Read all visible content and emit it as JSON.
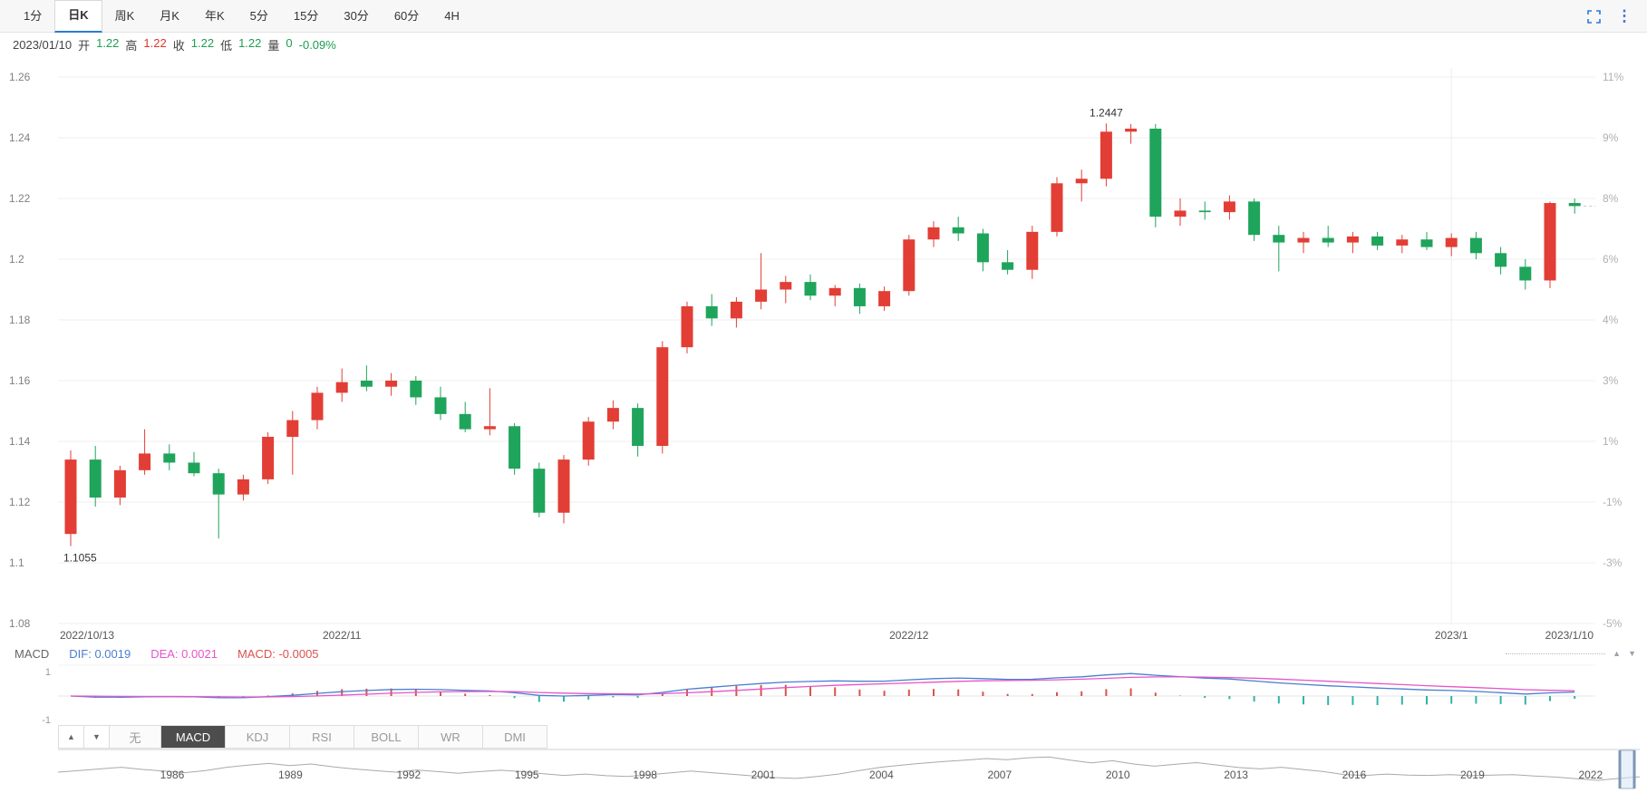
{
  "colors": {
    "up_red": "#e23e35",
    "down_green": "#1fa45b",
    "dif_blue": "#4a7fd1",
    "dea_magenta": "#e655c8",
    "hist_pos_red": "#d9544a",
    "hist_neg_teal": "#30b3a6",
    "accent_blue": "#2b7cd3"
  },
  "header": {
    "tabs": [
      {
        "label": "1分",
        "active": false
      },
      {
        "label": "日K",
        "active": true
      },
      {
        "label": "周K",
        "active": false
      },
      {
        "label": "月K",
        "active": false
      },
      {
        "label": "年K",
        "active": false
      },
      {
        "label": "5分",
        "active": false
      },
      {
        "label": "15分",
        "active": false
      },
      {
        "label": "30分",
        "active": false
      },
      {
        "label": "60分",
        "active": false
      },
      {
        "label": "4H",
        "active": false
      }
    ]
  },
  "info_bar": {
    "date": "2023/01/10",
    "fields": [
      {
        "label": "开",
        "value": "1.22",
        "color": "green"
      },
      {
        "label": "高",
        "value": "1.22",
        "color": "red"
      },
      {
        "label": "收",
        "value": "1.22",
        "color": "green"
      },
      {
        "label": "低",
        "value": "1.22",
        "color": "green"
      },
      {
        "label": "量",
        "value": "0",
        "color": "green"
      }
    ],
    "change": {
      "value": "-0.09%",
      "color": "green"
    }
  },
  "chart_data": [
    {
      "type": "candlestick",
      "name": "price-daily",
      "y_axis_left": [
        "1.26",
        "1.24",
        "1.22",
        "1.2",
        "1.18",
        "1.16",
        "1.14",
        "1.12",
        "1.1",
        "1.08"
      ],
      "y_axis_right": [
        "11%",
        "9%",
        "8%",
        "6%",
        "4%",
        "3%",
        "1%",
        "-1%",
        "-3%",
        "-5%"
      ],
      "ylim": [
        1.08,
        1.26
      ],
      "x_labels": [
        {
          "label": "2022/10/13",
          "index": 0,
          "align": "start"
        },
        {
          "label": "2022/11",
          "index": 11,
          "align": "middle"
        },
        {
          "label": "2022/12",
          "index": 34,
          "align": "middle"
        },
        {
          "label": "2023/1",
          "index": 56,
          "align": "middle"
        },
        {
          "label": "2023/1/10",
          "index": 61,
          "align": "end"
        }
      ],
      "grid_vline_index": 56,
      "annotations": [
        {
          "text": "1.1055",
          "index": 0,
          "price": 1.1055,
          "placement": "below"
        },
        {
          "text": "1.2447",
          "index": 42,
          "price": 1.2447,
          "placement": "above"
        }
      ],
      "candles_ohlc": [
        [
          1.1095,
          1.137,
          1.1055,
          1.134
        ],
        [
          1.134,
          1.1385,
          1.1185,
          1.1215
        ],
        [
          1.1215,
          1.132,
          1.119,
          1.1305
        ],
        [
          1.1305,
          1.144,
          1.129,
          1.136
        ],
        [
          1.136,
          1.139,
          1.1305,
          1.133
        ],
        [
          1.133,
          1.1365,
          1.1285,
          1.1295
        ],
        [
          1.1295,
          1.131,
          1.108,
          1.1225
        ],
        [
          1.1225,
          1.129,
          1.1205,
          1.1275
        ],
        [
          1.1275,
          1.143,
          1.126,
          1.1415
        ],
        [
          1.1415,
          1.15,
          1.129,
          1.147
        ],
        [
          1.147,
          1.158,
          1.144,
          1.156
        ],
        [
          1.156,
          1.164,
          1.153,
          1.1595
        ],
        [
          1.16,
          1.165,
          1.1565,
          1.158
        ],
        [
          1.158,
          1.1625,
          1.155,
          1.16
        ],
        [
          1.16,
          1.1615,
          1.152,
          1.1545
        ],
        [
          1.1545,
          1.158,
          1.147,
          1.149
        ],
        [
          1.149,
          1.153,
          1.143,
          1.144
        ],
        [
          1.144,
          1.1575,
          1.142,
          1.145
        ],
        [
          1.145,
          1.146,
          1.129,
          1.131
        ],
        [
          1.131,
          1.133,
          1.115,
          1.1165
        ],
        [
          1.1165,
          1.1355,
          1.113,
          1.134
        ],
        [
          1.134,
          1.148,
          1.132,
          1.1465
        ],
        [
          1.1465,
          1.1535,
          1.144,
          1.151
        ],
        [
          1.151,
          1.1525,
          1.135,
          1.1385
        ],
        [
          1.1385,
          1.173,
          1.136,
          1.171
        ],
        [
          1.171,
          1.186,
          1.169,
          1.1845
        ],
        [
          1.1845,
          1.1885,
          1.178,
          1.1805
        ],
        [
          1.1805,
          1.1875,
          1.1775,
          1.186
        ],
        [
          1.186,
          1.202,
          1.1835,
          1.19
        ],
        [
          1.19,
          1.1945,
          1.1855,
          1.1925
        ],
        [
          1.1925,
          1.195,
          1.1865,
          1.188
        ],
        [
          1.188,
          1.1915,
          1.1845,
          1.1905
        ],
        [
          1.1905,
          1.192,
          1.182,
          1.1845
        ],
        [
          1.1845,
          1.191,
          1.183,
          1.1895
        ],
        [
          1.1895,
          1.208,
          1.188,
          1.2065
        ],
        [
          1.2065,
          1.2125,
          1.204,
          1.2105
        ],
        [
          1.2105,
          1.214,
          1.206,
          1.2085
        ],
        [
          1.2085,
          1.21,
          1.196,
          1.199
        ],
        [
          1.199,
          1.203,
          1.195,
          1.1965
        ],
        [
          1.1965,
          1.211,
          1.1935,
          1.209
        ],
        [
          1.209,
          1.227,
          1.2075,
          1.225
        ],
        [
          1.225,
          1.2295,
          1.219,
          1.2265
        ],
        [
          1.2265,
          1.2447,
          1.224,
          1.242
        ],
        [
          1.242,
          1.2445,
          1.238,
          1.243
        ],
        [
          1.243,
          1.2445,
          1.2105,
          1.214
        ],
        [
          1.214,
          1.22,
          1.211,
          1.216
        ],
        [
          1.216,
          1.219,
          1.213,
          1.2155
        ],
        [
          1.2155,
          1.221,
          1.213,
          1.219
        ],
        [
          1.219,
          1.22,
          1.206,
          1.208
        ],
        [
          1.208,
          1.211,
          1.196,
          1.2055
        ],
        [
          1.2055,
          1.209,
          1.202,
          1.207
        ],
        [
          1.207,
          1.211,
          1.204,
          1.2055
        ],
        [
          1.2055,
          1.209,
          1.202,
          1.2075
        ],
        [
          1.2075,
          1.209,
          1.203,
          1.2045
        ],
        [
          1.2045,
          1.208,
          1.202,
          1.2065
        ],
        [
          1.2065,
          1.209,
          1.203,
          1.204
        ],
        [
          1.204,
          1.2085,
          1.201,
          1.207
        ],
        [
          1.207,
          1.209,
          1.2,
          1.202
        ],
        [
          1.202,
          1.204,
          1.195,
          1.1975
        ],
        [
          1.1975,
          1.2,
          1.19,
          1.193
        ],
        [
          1.193,
          1.219,
          1.1905,
          1.2185
        ],
        [
          1.2185,
          1.22,
          1.215,
          1.2175
        ]
      ]
    },
    {
      "type": "macd",
      "name": "macd-panel",
      "label": "MACD",
      "dif": "DIF: 0.0019",
      "dea": "DEA: 0.0021",
      "macd": "MACD: -0.0005",
      "y_axis": [
        "1",
        "-1"
      ],
      "derived_from": "price-daily"
    },
    {
      "type": "line",
      "name": "history-navigator",
      "x_labels": [
        "1986",
        "1989",
        "1992",
        "1995",
        "1998",
        "2001",
        "2004",
        "2007",
        "2010",
        "2013",
        "2016",
        "2019",
        "2022"
      ],
      "values": [
        0.4,
        0.46,
        0.52,
        0.58,
        0.5,
        0.44,
        0.38,
        0.46,
        0.58,
        0.66,
        0.72,
        0.64,
        0.7,
        0.6,
        0.52,
        0.46,
        0.4,
        0.48,
        0.42,
        0.36,
        0.42,
        0.47,
        0.42,
        0.34,
        0.28,
        0.33,
        0.27,
        0.24,
        0.3,
        0.37,
        0.44,
        0.38,
        0.32,
        0.26,
        0.2,
        0.17,
        0.24,
        0.33,
        0.46,
        0.58,
        0.66,
        0.73,
        0.79,
        0.84,
        0.9,
        0.86,
        0.93,
        0.96,
        0.84,
        0.74,
        0.82,
        0.7,
        0.62,
        0.69,
        0.75,
        0.66,
        0.57,
        0.52,
        0.58,
        0.5,
        0.42,
        0.31,
        0.28,
        0.33,
        0.29,
        0.28,
        0.31,
        0.27,
        0.29,
        0.31,
        0.26,
        0.22,
        0.16,
        0.1,
        0.17,
        0.23
      ]
    }
  ],
  "indicator_bar": {
    "up_button": "▲",
    "down_button": "▼",
    "tabs": [
      {
        "label": "无",
        "active": false
      },
      {
        "label": "MACD",
        "active": true
      },
      {
        "label": "KDJ",
        "active": false
      },
      {
        "label": "RSI",
        "active": false
      },
      {
        "label": "BOLL",
        "active": false
      },
      {
        "label": "WR",
        "active": false
      },
      {
        "label": "DMI",
        "active": false
      }
    ]
  }
}
